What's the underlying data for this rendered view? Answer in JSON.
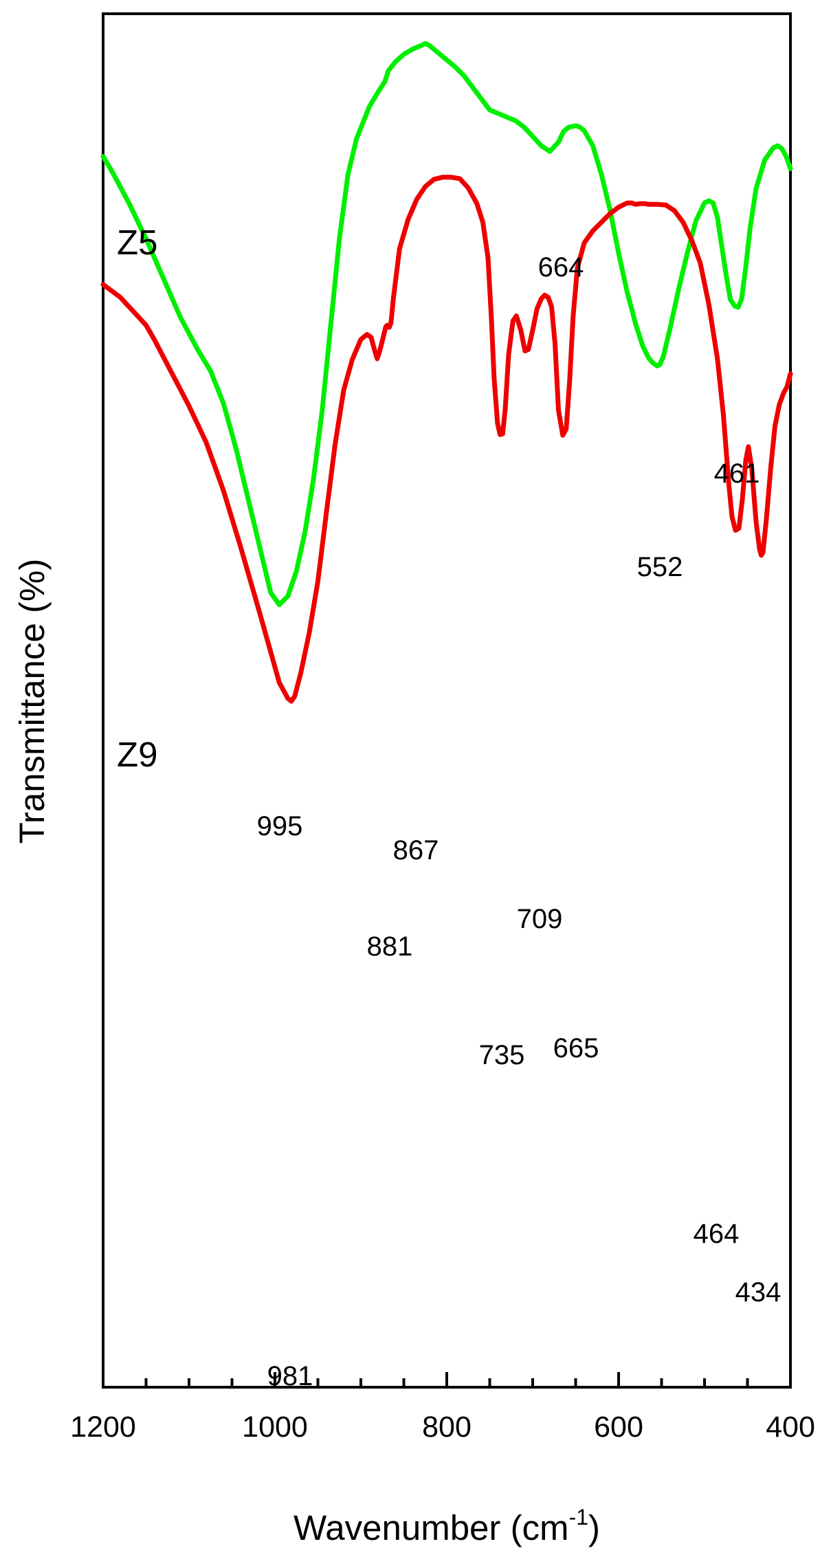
{
  "chart_data": {
    "type": "line",
    "xlabel_main": "Wavenumber (cm",
    "xlabel_sup": "-1",
    "xlabel_tail": ")",
    "ylabel": "Transmittance (%)",
    "xlim": [
      1200,
      400
    ],
    "xticks": [
      1200,
      1000,
      800,
      600,
      400
    ],
    "yticks_shown": false,
    "series": [
      {
        "name": "Z5",
        "color": "#00ee00",
        "x": [
          1200,
          1190,
          1170,
          1150,
          1130,
          1110,
          1090,
          1075,
          1060,
          1045,
          1030,
          1015,
          1005,
          995,
          985,
          975,
          965,
          955,
          945,
          935,
          925,
          915,
          905,
          895,
          890,
          880,
          872,
          868,
          860,
          850,
          840,
          830,
          825,
          820,
          810,
          800,
          790,
          780,
          770,
          760,
          750,
          740,
          730,
          720,
          710,
          700,
          690,
          680,
          670,
          664,
          658,
          650,
          645,
          640,
          630,
          620,
          610,
          600,
          590,
          580,
          572,
          565,
          560,
          555,
          552,
          548,
          540,
          530,
          520,
          510,
          500,
          495,
          490,
          485,
          480,
          475,
          470,
          465,
          461,
          457,
          452,
          447,
          440,
          430,
          420,
          415,
          410,
          405,
          400
        ],
        "y": [
          93.5,
          91.5,
          87.0,
          82.0,
          76.5,
          71.0,
          66.5,
          63.5,
          59.0,
          52.5,
          45.0,
          37.5,
          32.5,
          30.8,
          32.0,
          35.5,
          41.0,
          48.5,
          58.0,
          70.0,
          82.0,
          91.0,
          96.0,
          99.0,
          100.5,
          102.5,
          104.0,
          105.5,
          106.7,
          107.8,
          108.5,
          109.0,
          109.3,
          109.0,
          108.0,
          107.0,
          106.0,
          104.8,
          103.2,
          101.6,
          100.0,
          99.5,
          99.0,
          98.5,
          97.6,
          96.3,
          95.0,
          94.2,
          95.5,
          97.0,
          97.6,
          97.8,
          97.6,
          97.1,
          95.0,
          91.0,
          86.0,
          80.0,
          74.5,
          70.0,
          67.0,
          65.3,
          64.6,
          64.2,
          64.4,
          65.5,
          69.5,
          75.0,
          80.0,
          84.5,
          87.0,
          87.3,
          87.0,
          85.0,
          81.0,
          77.0,
          73.5,
          72.6,
          72.4,
          73.5,
          78.0,
          83.5,
          89.0,
          93.0,
          94.7,
          95.0,
          94.6,
          93.5,
          91.8
        ]
      },
      {
        "name": "Z9",
        "color": "#ee0000",
        "x": [
          1200,
          1180,
          1160,
          1150,
          1140,
          1120,
          1100,
          1080,
          1060,
          1040,
          1020,
          1005,
          995,
          985,
          981,
          977,
          970,
          960,
          950,
          940,
          930,
          920,
          910,
          900,
          893,
          888,
          885,
          881,
          878,
          874,
          871,
          869,
          867,
          865,
          862,
          855,
          845,
          835,
          825,
          815,
          805,
          795,
          785,
          775,
          765,
          758,
          752,
          748,
          745,
          741,
          738,
          735,
          732,
          728,
          723,
          719,
          714,
          709,
          705,
          700,
          695,
          690,
          686,
          682,
          678,
          674,
          670,
          665,
          661,
          657,
          653,
          648,
          640,
          630,
          620,
          610,
          600,
          590,
          585,
          580,
          575,
          570,
          565,
          555,
          545,
          535,
          525,
          515,
          505,
          495,
          485,
          478,
          472,
          468,
          464,
          460,
          456,
          452,
          449,
          445,
          440,
          436,
          434,
          432,
          428,
          423,
          418,
          413,
          408,
          404,
          400
        ],
        "y": [
          75.6,
          73.8,
          71.2,
          69.9,
          67.8,
          63.2,
          58.6,
          53.5,
          46.8,
          38.9,
          30.6,
          24.2,
          19.9,
          17.7,
          17.3,
          18.0,
          21.2,
          26.9,
          34.1,
          43.8,
          53.2,
          60.8,
          65.1,
          67.9,
          68.6,
          68.2,
          66.8,
          65.2,
          66.3,
          68.2,
          69.7,
          69.9,
          69.6,
          70.2,
          73.8,
          80.6,
          84.7,
          87.5,
          89.3,
          90.3,
          90.6,
          90.6,
          90.4,
          89.1,
          86.9,
          84.3,
          79.3,
          70.7,
          62.6,
          56.2,
          54.6,
          54.7,
          58.1,
          65.8,
          70.5,
          71.2,
          69.3,
          66.3,
          66.5,
          69.2,
          72.2,
          73.6,
          74.1,
          73.8,
          72.5,
          67.3,
          58.0,
          54.5,
          55.4,
          62.2,
          71.1,
          77.9,
          81.4,
          83.1,
          84.3,
          85.5,
          86.4,
          87.0,
          87.0,
          86.8,
          86.9,
          86.9,
          86.8,
          86.8,
          86.7,
          85.9,
          84.3,
          81.8,
          78.6,
          72.8,
          65.2,
          57.3,
          48.0,
          43.1,
          41.2,
          41.5,
          45.5,
          51.0,
          52.9,
          49.8,
          42.4,
          38.6,
          37.7,
          38.1,
          42.8,
          49.9,
          55.8,
          58.8,
          60.4,
          61.3,
          63.1
        ]
      }
    ],
    "annotations": [
      "664",
      "552",
      "461",
      "995",
      "867",
      "881",
      "709",
      "735",
      "665",
      "464",
      "434",
      "981"
    ]
  }
}
